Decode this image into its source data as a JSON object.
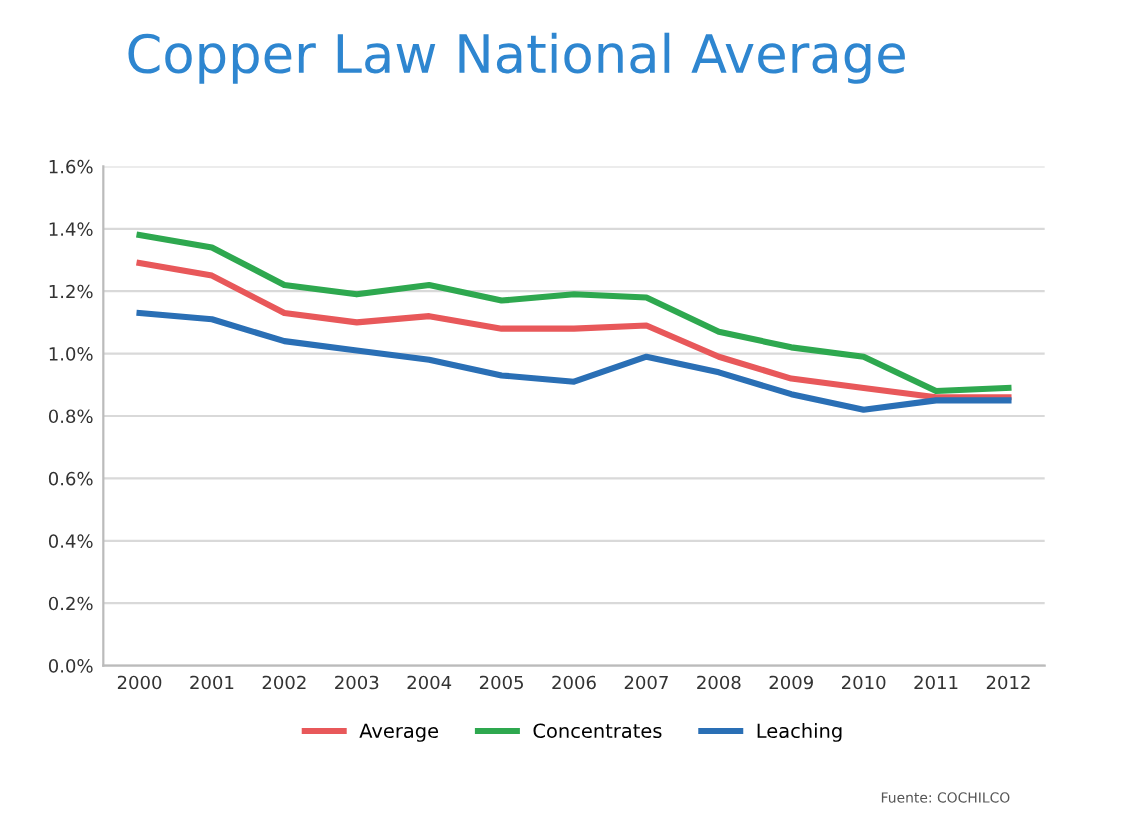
{
  "chart_data": {
    "type": "line",
    "title": "Copper Law National Average",
    "categories": [
      "2000",
      "2001",
      "2002",
      "2003",
      "2004",
      "2005",
      "2006",
      "2007",
      "2008",
      "2009",
      "2010",
      "2011",
      "2012"
    ],
    "series": [
      {
        "name": "Average",
        "color": "#e8585a",
        "values": [
          1.29,
          1.25,
          1.13,
          1.1,
          1.12,
          1.08,
          1.08,
          1.09,
          0.99,
          0.92,
          0.89,
          0.86,
          0.86
        ]
      },
      {
        "name": "Concentrates",
        "color": "#2ea84f",
        "values": [
          1.38,
          1.34,
          1.22,
          1.19,
          1.22,
          1.17,
          1.19,
          1.18,
          1.07,
          1.02,
          0.99,
          0.88,
          0.89
        ]
      },
      {
        "name": "Leaching",
        "color": "#2a6fb5",
        "values": [
          1.13,
          1.11,
          1.04,
          1.01,
          0.98,
          0.93,
          0.91,
          0.99,
          0.94,
          0.87,
          0.82,
          0.85,
          0.85
        ]
      }
    ],
    "ylim": [
      0,
      1.6
    ],
    "yticks": [
      {
        "value": 0,
        "label": "0.0%"
      },
      {
        "value": 0.2,
        "label": "0.2%"
      },
      {
        "value": 0.4,
        "label": "0.4%"
      },
      {
        "value": 0.6,
        "label": "0.6%"
      },
      {
        "value": 0.8,
        "label": "0.8%"
      },
      {
        "value": 1.0,
        "label": "1.0%"
      },
      {
        "value": 1.2,
        "label": "1.2%"
      },
      {
        "value": 1.4,
        "label": "1.4%"
      },
      {
        "value": 1.6,
        "label": "1.6%"
      }
    ],
    "grid": "y",
    "legend": "bottom",
    "marker": "none",
    "line_style": "solid",
    "annotations": [
      "Fuente: COCHILCO"
    ]
  }
}
